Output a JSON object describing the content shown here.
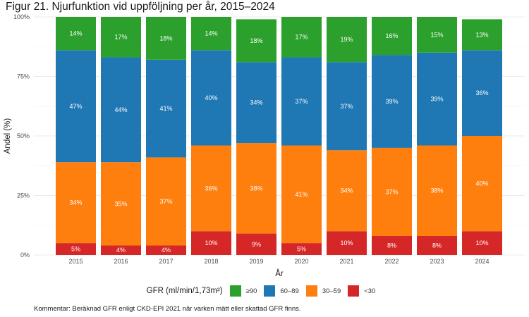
{
  "chart_data": {
    "type": "bar",
    "stacked": true,
    "title": "Figur 21. Njurfunktion vid uppföljning per år, 2015–2024",
    "xlabel": "År",
    "ylabel": "Andel (%)",
    "ylim": [
      0,
      100
    ],
    "yticks": [
      "0%",
      "25%",
      "50%",
      "75%",
      "100%"
    ],
    "ytick_values": [
      0,
      25,
      50,
      75,
      100
    ],
    "grid": true,
    "categories": [
      "2015",
      "2016",
      "2017",
      "2018",
      "2019",
      "2020",
      "2021",
      "2022",
      "2023",
      "2024"
    ],
    "series": [
      {
        "name": "<30",
        "color": "#d62728",
        "values": [
          5,
          4,
          4,
          10,
          9,
          5,
          10,
          8,
          8,
          10
        ]
      },
      {
        "name": "30–59",
        "color": "#ff7f0e",
        "values": [
          34,
          35,
          37,
          36,
          38,
          41,
          34,
          37,
          38,
          40
        ]
      },
      {
        "name": "60–89",
        "color": "#1f77b4",
        "values": [
          47,
          44,
          41,
          40,
          34,
          37,
          37,
          39,
          39,
          36
        ]
      },
      {
        "name": "≥90",
        "color": "#2ca02c",
        "values": [
          14,
          17,
          18,
          14,
          18,
          17,
          19,
          16,
          15,
          13
        ]
      }
    ],
    "legend": {
      "title": "GFR (ml/min/1,73m²)",
      "placement": "bottom",
      "order": [
        "≥90",
        "60–89",
        "30–59",
        "<30"
      ]
    },
    "caption": "Kommentar: Beräknad GFR enligt CKD-EPI 2021 när varken mätt eller skattad GFR finns."
  }
}
